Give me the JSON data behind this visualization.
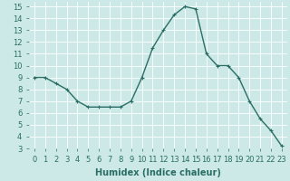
{
  "x": [
    0,
    1,
    2,
    3,
    4,
    5,
    6,
    7,
    8,
    9,
    10,
    11,
    12,
    13,
    14,
    15,
    16,
    17,
    18,
    19,
    20,
    21,
    22,
    23
  ],
  "y": [
    9,
    9,
    8.5,
    8,
    7,
    6.5,
    6.5,
    6.5,
    6.5,
    7,
    9,
    11.5,
    13,
    14.3,
    15,
    14.8,
    11,
    10,
    10,
    9,
    7,
    5.5,
    4.5,
    3.2
  ],
  "line_color": "#2a6e65",
  "marker": "+",
  "marker_size": 3,
  "linewidth": 1.0,
  "xlabel": "Humidex (Indice chaleur)",
  "xlabel_fontsize": 7,
  "xlabel_fontweight": "bold",
  "xlim": [
    -0.5,
    23.5
  ],
  "ylim": [
    3,
    15.4
  ],
  "yticks": [
    3,
    4,
    5,
    6,
    7,
    8,
    9,
    10,
    11,
    12,
    13,
    14,
    15
  ],
  "xticks": [
    0,
    1,
    2,
    3,
    4,
    5,
    6,
    7,
    8,
    9,
    10,
    11,
    12,
    13,
    14,
    15,
    16,
    17,
    18,
    19,
    20,
    21,
    22,
    23
  ],
  "background_color": "#cce9e7",
  "grid_color": "#ffffff",
  "tick_fontsize": 6,
  "tick_color": "#2a6e65",
  "label_color": "#2a6e65"
}
